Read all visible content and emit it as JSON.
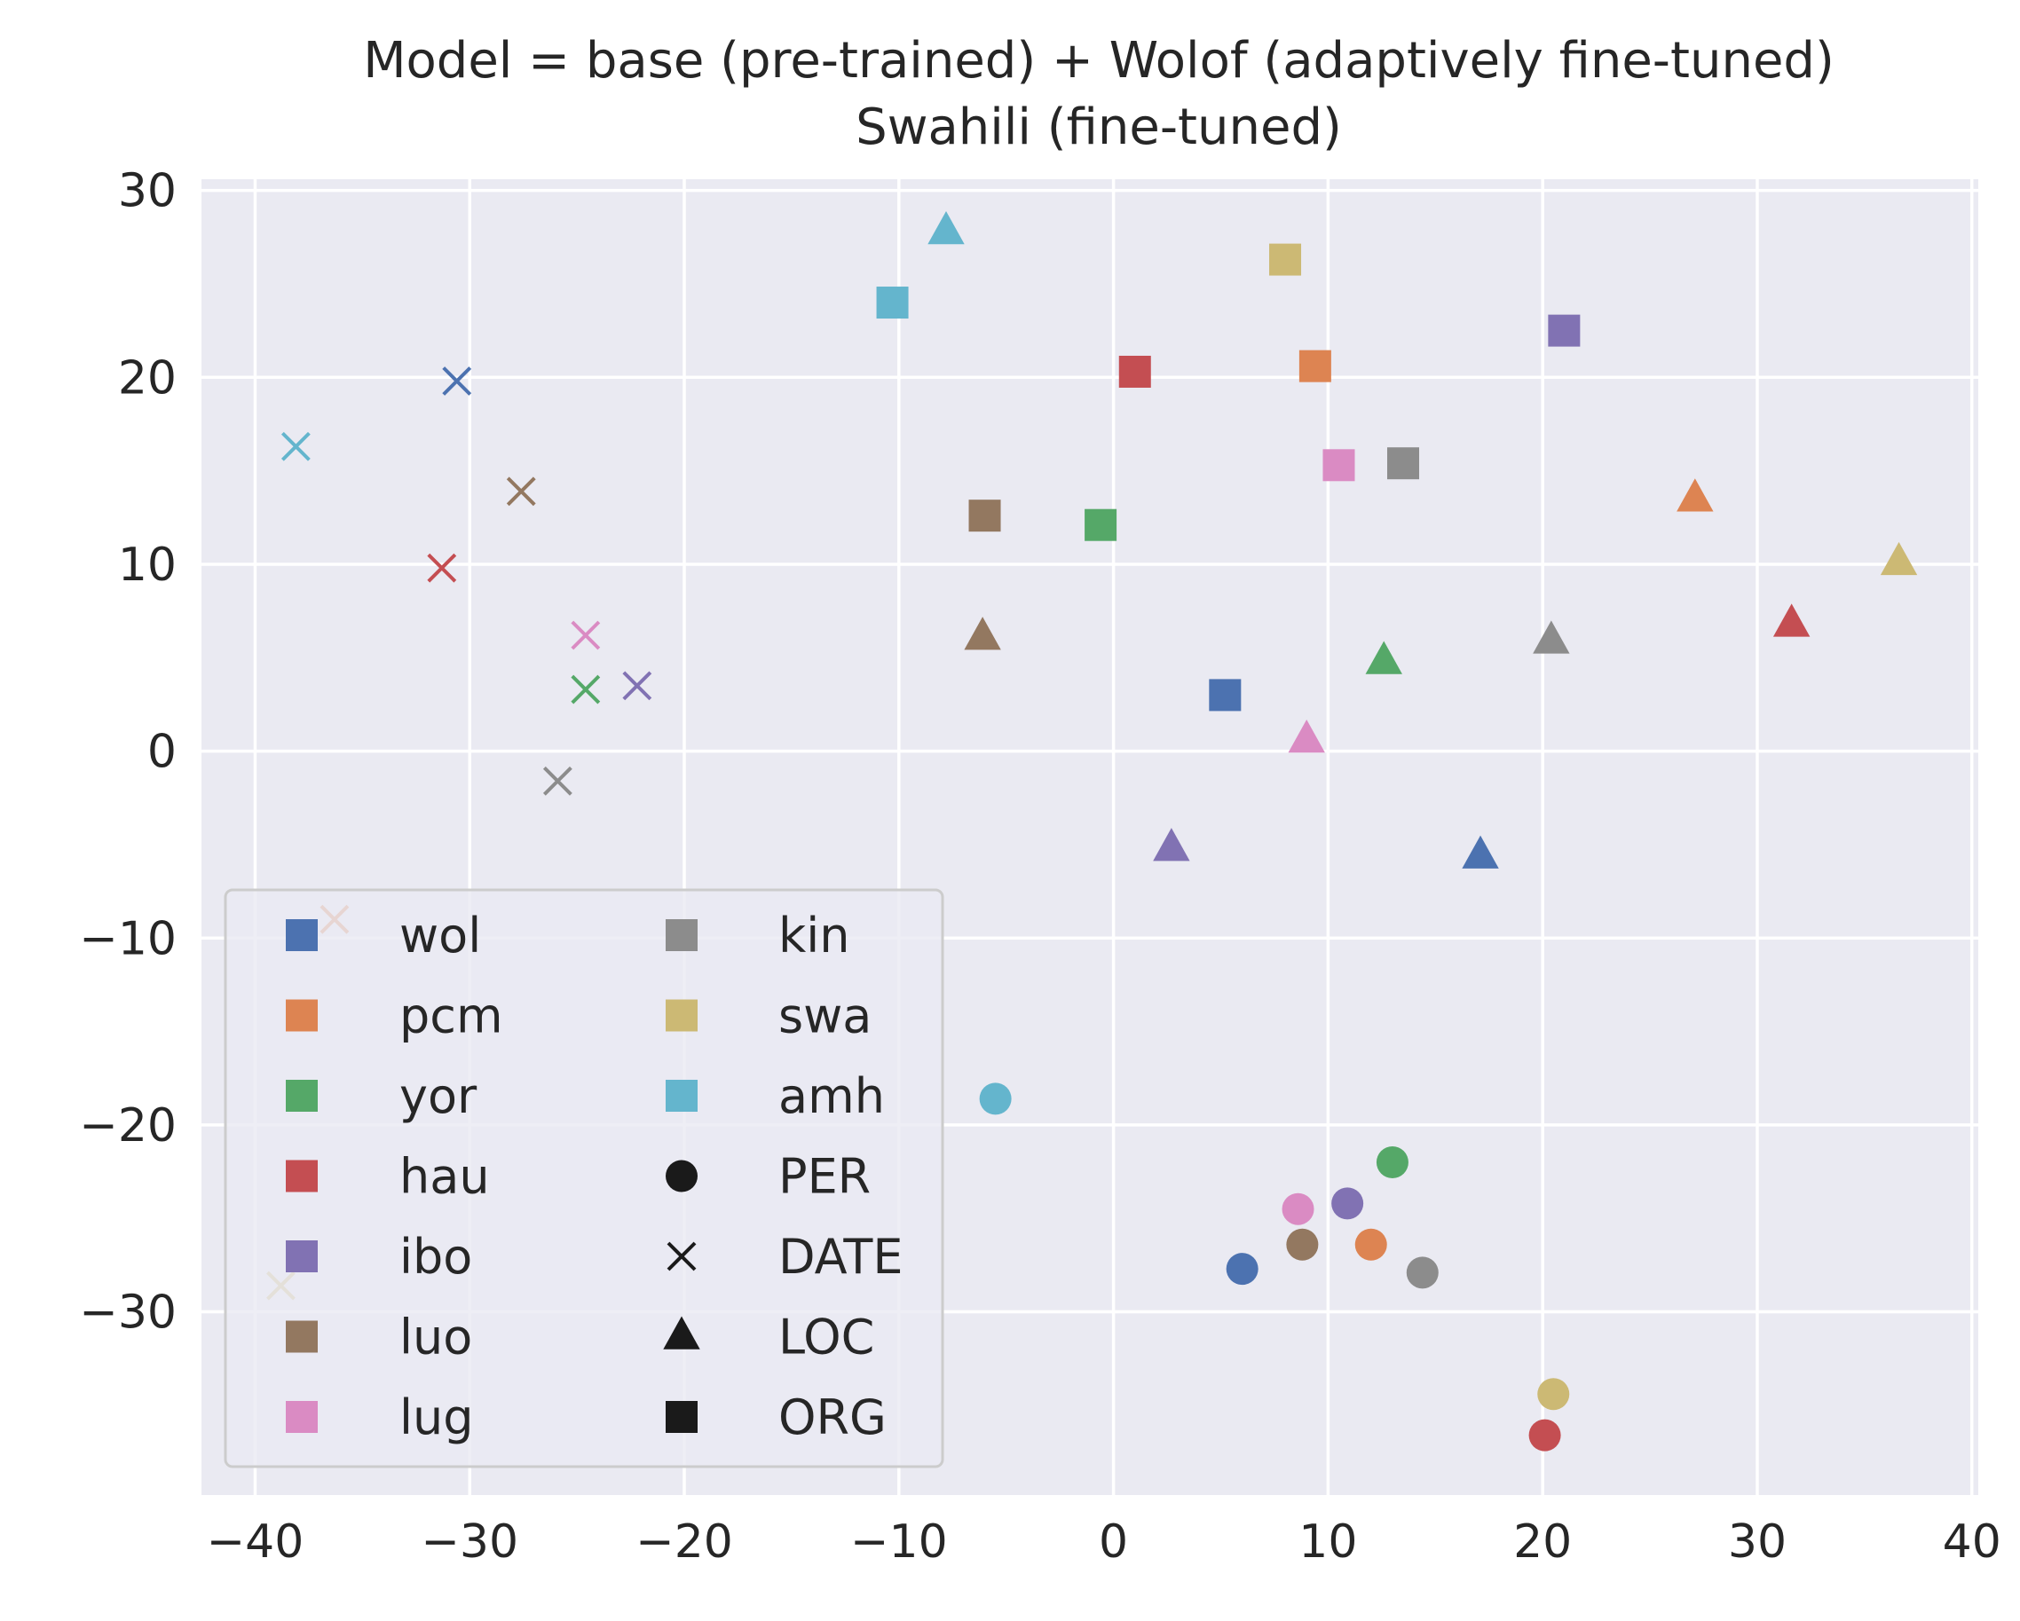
{
  "chart_data": {
    "type": "scatter",
    "title": "Model = base (pre-trained) + Wolof (adaptively fine-tuned)",
    "subtitle": "Swahili (fine-tuned)",
    "xlabel": "",
    "ylabel": "",
    "xlim": [
      -42.5,
      40.3
    ],
    "ylim": [
      -39.8,
      30.6
    ],
    "x_ticks": [
      -40,
      -30,
      -20,
      -10,
      0,
      10,
      20,
      30,
      40
    ],
    "y_ticks": [
      -30,
      -20,
      -10,
      0,
      10,
      20,
      30
    ],
    "x_tick_labels": [
      "−40",
      "−30",
      "−20",
      "−10",
      "0",
      "10",
      "20",
      "30",
      "40"
    ],
    "y_tick_labels": [
      "−30",
      "−20",
      "−10",
      "0",
      "10",
      "20",
      "30"
    ],
    "grid": true,
    "background_color": "#EAEAF2",
    "grid_color": "#ffffff",
    "legend_placement": "lower-left",
    "languages": [
      {
        "name": "wol",
        "color": "#4C72B0"
      },
      {
        "name": "pcm",
        "color": "#DD8452"
      },
      {
        "name": "yor",
        "color": "#55A868"
      },
      {
        "name": "hau",
        "color": "#C44E52"
      },
      {
        "name": "ibo",
        "color": "#8172B3"
      },
      {
        "name": "luo",
        "color": "#937860"
      },
      {
        "name": "lug",
        "color": "#DA8BC3"
      },
      {
        "name": "kin",
        "color": "#8C8C8C"
      },
      {
        "name": "swa",
        "color": "#CCB974"
      },
      {
        "name": "amh",
        "color": "#64B5CD"
      }
    ],
    "entity_types": [
      {
        "name": "PER",
        "marker": "circle"
      },
      {
        "name": "DATE",
        "marker": "x"
      },
      {
        "name": "LOC",
        "marker": "triangle"
      },
      {
        "name": "ORG",
        "marker": "square"
      }
    ],
    "points": [
      {
        "language": "wol",
        "entity": "PER",
        "x": 6.0,
        "y": -27.7
      },
      {
        "language": "pcm",
        "entity": "PER",
        "x": 12.0,
        "y": -26.4
      },
      {
        "language": "yor",
        "entity": "PER",
        "x": 13.0,
        "y": -22.0
      },
      {
        "language": "hau",
        "entity": "PER",
        "x": 20.1,
        "y": -36.6
      },
      {
        "language": "ibo",
        "entity": "PER",
        "x": 10.9,
        "y": -24.2
      },
      {
        "language": "luo",
        "entity": "PER",
        "x": 8.8,
        "y": -26.4
      },
      {
        "language": "lug",
        "entity": "PER",
        "x": 8.6,
        "y": -24.5
      },
      {
        "language": "kin",
        "entity": "PER",
        "x": 14.4,
        "y": -27.9
      },
      {
        "language": "swa",
        "entity": "PER",
        "x": 20.5,
        "y": -34.4
      },
      {
        "language": "amh",
        "entity": "PER",
        "x": -5.5,
        "y": -18.6
      },
      {
        "language": "wol",
        "entity": "DATE",
        "x": -30.6,
        "y": 19.8
      },
      {
        "language": "pcm",
        "entity": "DATE",
        "x": -36.3,
        "y": -9.0
      },
      {
        "language": "yor",
        "entity": "DATE",
        "x": -24.6,
        "y": 3.3
      },
      {
        "language": "hau",
        "entity": "DATE",
        "x": -31.3,
        "y": 9.8
      },
      {
        "language": "ibo",
        "entity": "DATE",
        "x": -22.2,
        "y": 3.5
      },
      {
        "language": "luo",
        "entity": "DATE",
        "x": -27.6,
        "y": 13.9
      },
      {
        "language": "lug",
        "entity": "DATE",
        "x": -24.6,
        "y": 6.2
      },
      {
        "language": "kin",
        "entity": "DATE",
        "x": -25.9,
        "y": -1.6
      },
      {
        "language": "swa",
        "entity": "DATE",
        "x": -38.8,
        "y": -28.6
      },
      {
        "language": "amh",
        "entity": "DATE",
        "x": -38.1,
        "y": 16.3
      },
      {
        "language": "wol",
        "entity": "LOC",
        "x": 17.1,
        "y": -5.6
      },
      {
        "language": "pcm",
        "entity": "LOC",
        "x": 27.1,
        "y": 13.5
      },
      {
        "language": "yor",
        "entity": "LOC",
        "x": 12.6,
        "y": 4.8
      },
      {
        "language": "hau",
        "entity": "LOC",
        "x": 31.6,
        "y": 6.8
      },
      {
        "language": "ibo",
        "entity": "LOC",
        "x": 2.7,
        "y": -5.2
      },
      {
        "language": "luo",
        "entity": "LOC",
        "x": -6.1,
        "y": 6.1
      },
      {
        "language": "lug",
        "entity": "LOC",
        "x": 9.0,
        "y": 0.6
      },
      {
        "language": "kin",
        "entity": "LOC",
        "x": 20.4,
        "y": 5.9
      },
      {
        "language": "swa",
        "entity": "LOC",
        "x": 36.6,
        "y": 10.1
      },
      {
        "language": "amh",
        "entity": "LOC",
        "x": -7.8,
        "y": 27.8
      },
      {
        "language": "wol",
        "entity": "ORG",
        "x": 5.2,
        "y": 3.0
      },
      {
        "language": "pcm",
        "entity": "ORG",
        "x": 9.4,
        "y": 20.6
      },
      {
        "language": "yor",
        "entity": "ORG",
        "x": -0.6,
        "y": 12.1
      },
      {
        "language": "hau",
        "entity": "ORG",
        "x": 1.0,
        "y": 20.3
      },
      {
        "language": "ibo",
        "entity": "ORG",
        "x": 21.0,
        "y": 22.5
      },
      {
        "language": "luo",
        "entity": "ORG",
        "x": -6.0,
        "y": 12.6
      },
      {
        "language": "lug",
        "entity": "ORG",
        "x": 10.5,
        "y": 15.3
      },
      {
        "language": "kin",
        "entity": "ORG",
        "x": 13.5,
        "y": 15.4
      },
      {
        "language": "swa",
        "entity": "ORG",
        "x": 8.0,
        "y": 26.3
      },
      {
        "language": "amh",
        "entity": "ORG",
        "x": -10.3,
        "y": 24.0
      }
    ]
  }
}
